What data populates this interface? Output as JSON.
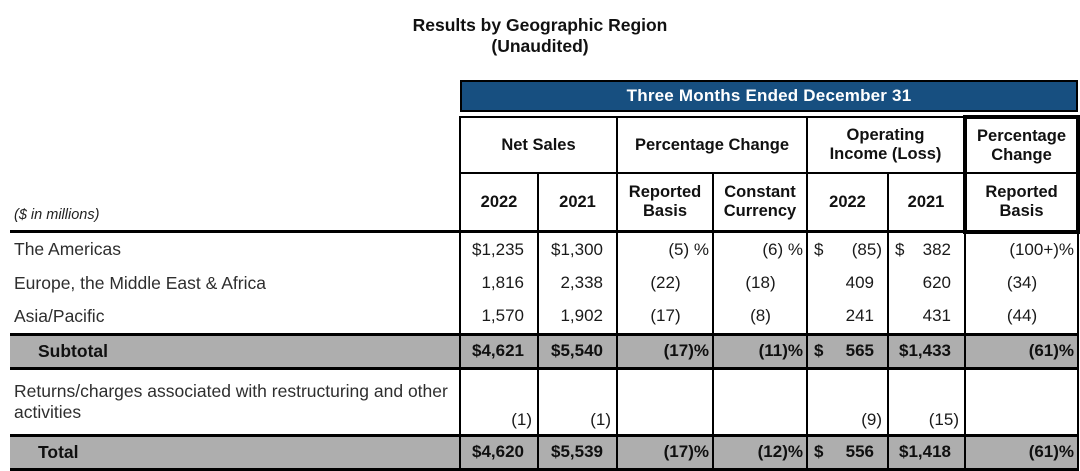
{
  "colors": {
    "header_blue": "#174f80",
    "row_highlight_gray": "#aeaeae",
    "border_black": "#000000"
  },
  "page": {
    "title_line1": "Results by Geographic Region",
    "title_line2": "(Unaudited)"
  },
  "table": {
    "band_title": "Three Months Ended December 31",
    "units_note": "($ in millions)",
    "column_groups": [
      {
        "label": "Net Sales"
      },
      {
        "label": "Percentage Change"
      },
      {
        "label": "Operating\nIncome (Loss)"
      },
      {
        "label": "Percentage\nChange"
      }
    ],
    "sub_headers": [
      "2022",
      "2021",
      "Reported\nBasis",
      "Constant\nCurrency",
      "2022",
      "2021",
      "Reported\nBasis"
    ],
    "rows": [
      {
        "label": "The Americas",
        "cells": [
          "$1,235",
          "$1,300",
          "(5) %",
          "(6) %",
          "$ (85)",
          "$ 382",
          "(100+)%"
        ]
      },
      {
        "label": "Europe, the Middle East & Africa",
        "cells": [
          "1,816",
          "2,338",
          "(22)",
          "(18)",
          "409",
          "620",
          "(34)"
        ]
      },
      {
        "label": "Asia/Pacific",
        "cells": [
          "1,570",
          "1,902",
          "(17)",
          "(8)",
          "241",
          "431",
          "(44)"
        ]
      },
      {
        "label": "Subtotal",
        "cells": [
          "$4,621",
          "$5,540",
          "(17)%",
          "(11)%",
          "$ 565",
          "$1,433",
          "(61)%"
        ]
      },
      {
        "label": "Returns/charges associated with restructuring and other activities",
        "cells": [
          "(1)",
          "(1)",
          "",
          "",
          "(9)",
          "(15)",
          ""
        ]
      },
      {
        "label": "Total",
        "cells": [
          "$4,620",
          "$5,539",
          "(17)%",
          "(12)%",
          "$ 556",
          "$1,418",
          "(61)%"
        ]
      }
    ]
  }
}
